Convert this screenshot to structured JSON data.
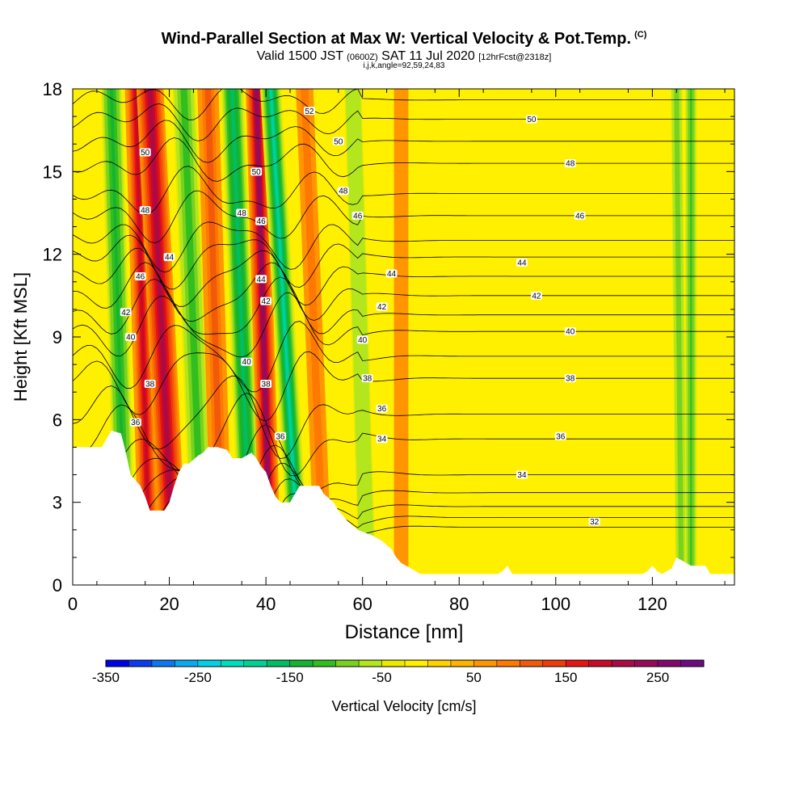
{
  "title": {
    "main": "Wind-Parallel Section at Max W: Vertical Velocity & Pot.Temp.",
    "copyright": "(C)",
    "valid_prefix": "Valid 1500 JST",
    "valid_utc": "(0600Z)",
    "valid_date": "SAT 11 Jul 2020",
    "forecast": "[12hrFcst@2318z]",
    "indices": "i,j,k,angle=92,59,24,83"
  },
  "colorbar": {
    "label": "Vertical Velocity [cm/s]",
    "tick_labels": [
      "-350",
      "-250",
      "-150",
      "-50",
      "50",
      "150",
      "250"
    ],
    "tick_values": [
      -350,
      -250,
      -150,
      -50,
      50,
      150,
      250
    ],
    "range": [
      -350,
      300
    ],
    "colors": [
      "#0000e6",
      "#0a3cf0",
      "#0a78f0",
      "#0aaaf0",
      "#00d2e6",
      "#00dcbe",
      "#00d296",
      "#00be64",
      "#14b432",
      "#32be1e",
      "#78d21e",
      "#b4e61e",
      "#ebeb00",
      "#fff000",
      "#ffd200",
      "#ffb400",
      "#ff9600",
      "#ff7800",
      "#f05a0a",
      "#f03c0a",
      "#e61414",
      "#c80a28",
      "#aa0a46",
      "#960a5a",
      "#82086e",
      "#6e0a82"
    ]
  },
  "chart_data": {
    "type": "heatmap",
    "title": "Wind-Parallel Section at Max W: Vertical Velocity & Pot.Temp.",
    "xlabel": "Distance [nm]",
    "ylabel": "Height [Kft MSL]",
    "xlim": [
      0,
      137
    ],
    "ylim": [
      0,
      18
    ],
    "x_ticks": [
      0,
      20,
      40,
      60,
      80,
      100,
      120
    ],
    "y_ticks": [
      0,
      3,
      6,
      9,
      12,
      15,
      18
    ],
    "background_color": "#fff000",
    "terrain_top_kft": [
      [
        0,
        5
      ],
      [
        3,
        5
      ],
      [
        6,
        5
      ],
      [
        8,
        5.6
      ],
      [
        10,
        5.5
      ],
      [
        11,
        4.8
      ],
      [
        12,
        4
      ],
      [
        13,
        3.8
      ],
      [
        14,
        3.6
      ],
      [
        15,
        3.2
      ],
      [
        16,
        2.7
      ],
      [
        19,
        2.7
      ],
      [
        20,
        3
      ],
      [
        21,
        3.6
      ],
      [
        22,
        4.1
      ],
      [
        23,
        4.4
      ],
      [
        24,
        4.4
      ],
      [
        26,
        4.7
      ],
      [
        27,
        4.8
      ],
      [
        28,
        5
      ],
      [
        30,
        5
      ],
      [
        32,
        4.9
      ],
      [
        33,
        4.6
      ],
      [
        35,
        4.6
      ],
      [
        37,
        4.8
      ],
      [
        38,
        4.6
      ],
      [
        39,
        4.3
      ],
      [
        40,
        4.1
      ],
      [
        41,
        3.6
      ],
      [
        42,
        3.2
      ],
      [
        43,
        3
      ],
      [
        45,
        3
      ],
      [
        46,
        3.3
      ],
      [
        47,
        3.6
      ],
      [
        51,
        3.6
      ],
      [
        52,
        3.3
      ],
      [
        54,
        3
      ],
      [
        55,
        2.7
      ],
      [
        57,
        2.3
      ],
      [
        59,
        2
      ],
      [
        62,
        1.8
      ],
      [
        64,
        1.6
      ],
      [
        66,
        1.3
      ],
      [
        67,
        1
      ],
      [
        68,
        0.8
      ],
      [
        70,
        0.6
      ],
      [
        72,
        0.4
      ],
      [
        75,
        0.4
      ],
      [
        88,
        0.4
      ],
      [
        89,
        0.5
      ],
      [
        90,
        0.7
      ],
      [
        91,
        0.4
      ],
      [
        118,
        0.4
      ],
      [
        119,
        0.5
      ],
      [
        120,
        0.7
      ],
      [
        121,
        0.5
      ],
      [
        122,
        0.4
      ],
      [
        124,
        0.6
      ],
      [
        125,
        1
      ],
      [
        126,
        0.9
      ],
      [
        128,
        0.7
      ],
      [
        131,
        0.7
      ],
      [
        132,
        0.4
      ],
      [
        137,
        0.4
      ]
    ],
    "vertical_velocity_bands_cm_s": [
      {
        "x_bottom": 11,
        "x_top": 8,
        "half_width_nm": 2.2,
        "value": -130
      },
      {
        "x_bottom": 16,
        "x_top": 13,
        "half_width_nm": 2.2,
        "value": 180
      },
      {
        "x_bottom": 21,
        "x_top": 16,
        "half_width_nm": 2.8,
        "value": 200
      },
      {
        "x_bottom": 27,
        "x_top": 23,
        "half_width_nm": 2.4,
        "value": -120
      },
      {
        "x_bottom": 31,
        "x_top": 28,
        "half_width_nm": 2.2,
        "value": 120
      },
      {
        "x_bottom": 37,
        "x_top": 33,
        "half_width_nm": 2.4,
        "value": -170
      },
      {
        "x_bottom": 41,
        "x_top": 38,
        "half_width_nm": 2.2,
        "value": 230
      },
      {
        "x_bottom": 47,
        "x_top": 41,
        "half_width_nm": 2.2,
        "value": -200
      },
      {
        "x_bottom": 52,
        "x_top": 48,
        "half_width_nm": 1.8,
        "value": 90
      },
      {
        "x_bottom": 61,
        "x_top": 58,
        "half_width_nm": 1.8,
        "value": -60
      },
      {
        "x_bottom": 68,
        "x_top": 68,
        "half_width_nm": 1.5,
        "value": 60
      },
      {
        "x_bottom": 126,
        "x_top": 125,
        "half_width_nm": 1.2,
        "value": -90
      },
      {
        "x_bottom": 128,
        "x_top": 128,
        "half_width_nm": 1.2,
        "value": -110
      }
    ],
    "potential_temperature_contours": {
      "label_values": [
        32,
        34,
        36,
        38,
        40,
        42,
        44,
        46,
        48,
        50,
        52
      ],
      "right_edge_heights_kft": [
        [
          31,
          2.1
        ],
        [
          32,
          2.45
        ],
        [
          33,
          2.85
        ],
        [
          34,
          3.35
        ],
        [
          35,
          4
        ],
        [
          36,
          5.3
        ],
        [
          37,
          6.2
        ],
        [
          38,
          7.5
        ],
        [
          39,
          8.3
        ],
        [
          40,
          9.2
        ],
        [
          41,
          9.8
        ],
        [
          42,
          10.5
        ],
        [
          43,
          11.2
        ],
        [
          44,
          11.9
        ],
        [
          45,
          12.5
        ],
        [
          46,
          13.4
        ],
        [
          47,
          14.2
        ],
        [
          48,
          15.3
        ],
        [
          49,
          16.1
        ],
        [
          50,
          16.9
        ],
        [
          51,
          17.6
        ]
      ],
      "labels": [
        {
          "text": "50",
          "x": 95,
          "y": 16.9
        },
        {
          "text": "48",
          "x": 103,
          "y": 15.3
        },
        {
          "text": "46",
          "x": 105,
          "y": 13.4
        },
        {
          "text": "44",
          "x": 93,
          "y": 11.7
        },
        {
          "text": "42",
          "x": 96,
          "y": 10.5
        },
        {
          "text": "40",
          "x": 103,
          "y": 9.2
        },
        {
          "text": "38",
          "x": 103,
          "y": 7.5
        },
        {
          "text": "36",
          "x": 101,
          "y": 5.4
        },
        {
          "text": "34",
          "x": 93,
          "y": 4.0
        },
        {
          "text": "32",
          "x": 108,
          "y": 2.3
        },
        {
          "text": "52",
          "x": 49,
          "y": 17.2
        },
        {
          "text": "50",
          "x": 55,
          "y": 16.1
        },
        {
          "text": "48",
          "x": 56,
          "y": 14.3
        },
        {
          "text": "46",
          "x": 59,
          "y": 13.4
        },
        {
          "text": "44",
          "x": 66,
          "y": 11.3
        },
        {
          "text": "42",
          "x": 64,
          "y": 10.1
        },
        {
          "text": "40",
          "x": 60,
          "y": 8.9
        },
        {
          "text": "38",
          "x": 61,
          "y": 7.5
        },
        {
          "text": "36",
          "x": 64,
          "y": 6.4
        },
        {
          "text": "34",
          "x": 64,
          "y": 5.3
        },
        {
          "text": "50",
          "x": 15,
          "y": 15.7
        },
        {
          "text": "48",
          "x": 15,
          "y": 13.6
        },
        {
          "text": "44",
          "x": 20,
          "y": 11.9
        },
        {
          "text": "46",
          "x": 14,
          "y": 11.2
        },
        {
          "text": "42",
          "x": 11,
          "y": 9.9
        },
        {
          "text": "40",
          "x": 12,
          "y": 9.0
        },
        {
          "text": "38",
          "x": 16,
          "y": 7.3
        },
        {
          "text": "36",
          "x": 13,
          "y": 5.9
        },
        {
          "text": "50",
          "x": 38,
          "y": 15.0
        },
        {
          "text": "48",
          "x": 35,
          "y": 13.5
        },
        {
          "text": "46",
          "x": 39,
          "y": 13.2
        },
        {
          "text": "44",
          "x": 39,
          "y": 11.1
        },
        {
          "text": "42",
          "x": 40,
          "y": 10.3
        },
        {
          "text": "40",
          "x": 36,
          "y": 8.1
        },
        {
          "text": "38",
          "x": 40,
          "y": 7.3
        },
        {
          "text": "36",
          "x": 43,
          "y": 5.4
        }
      ]
    }
  }
}
